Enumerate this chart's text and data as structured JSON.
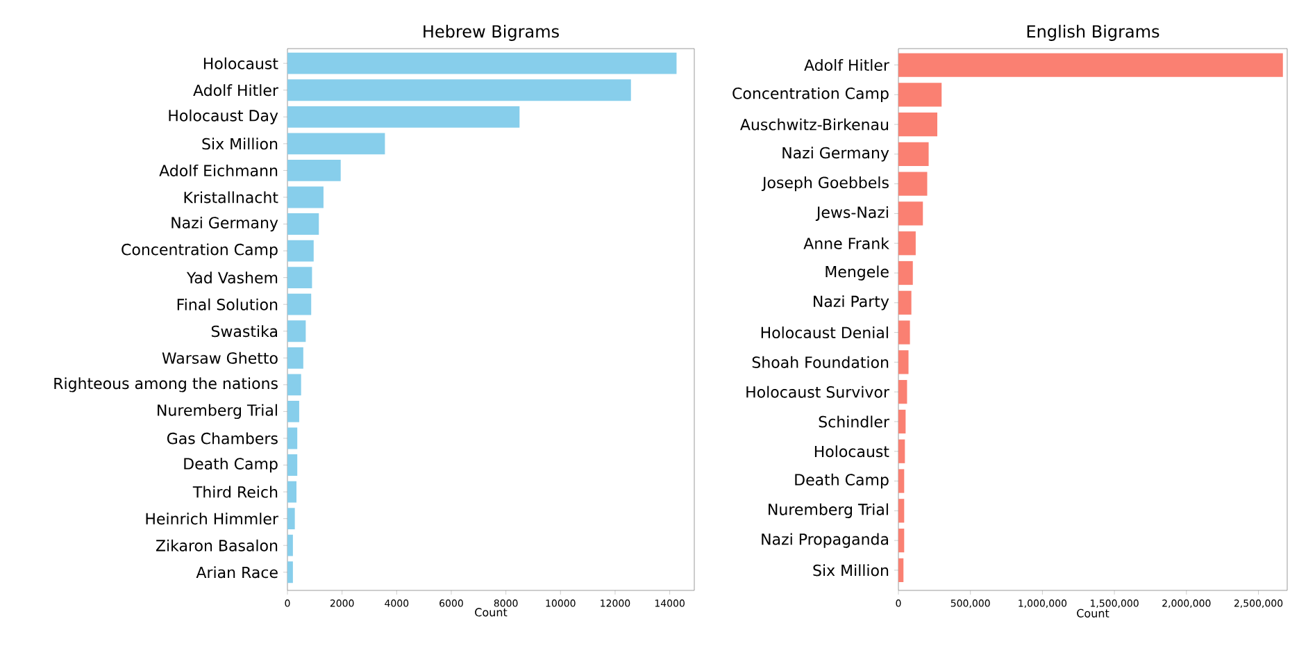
{
  "chart_data": [
    {
      "type": "bar",
      "orientation": "horizontal",
      "title": "Hebrew Bigrams",
      "xlabel": "Count",
      "color": "#87ceeb",
      "categories": [
        "Holocaust",
        "Adolf Hitler",
        "Holocaust Day",
        "Six Million",
        "Adolf Eichmann",
        "Kristallnacht",
        "Nazi Germany",
        "Concentration Camp",
        "Yad Vashem",
        "Final Solution",
        "Swastika",
        "Warsaw Ghetto",
        "Righteous among the nations",
        "Nuremberg Trial",
        "Gas Chambers",
        "Death Camp",
        "Third Reich",
        "Heinrich Himmler",
        "Zikaron Basalon",
        "Arian Race"
      ],
      "values": [
        14250,
        12580,
        8500,
        3570,
        1950,
        1320,
        1150,
        960,
        900,
        870,
        670,
        580,
        500,
        430,
        360,
        360,
        330,
        270,
        200,
        200
      ],
      "xlim": [
        0,
        14900
      ],
      "xticks": [
        0,
        2000,
        4000,
        6000,
        8000,
        10000,
        12000,
        14000
      ]
    },
    {
      "type": "bar",
      "orientation": "horizontal",
      "title": "English Bigrams",
      "xlabel": "Count",
      "color": "#fa8072",
      "categories": [
        "Adolf Hitler",
        "Concentration Camp",
        "Auschwitz-Birkenau",
        "Nazi Germany",
        "Joseph Goebbels",
        "Jews-Nazi",
        "Anne Frank",
        "Mengele",
        "Nazi Party",
        "Holocaust Denial",
        "Shoah Foundation",
        "Holocaust Survivor",
        "Schindler",
        "Holocaust",
        "Death Camp",
        "Nuremberg Trial",
        "Nazi Propaganda",
        "Six Million"
      ],
      "values": [
        2670000,
        300000,
        270000,
        210000,
        200000,
        170000,
        120000,
        100000,
        90000,
        80000,
        70000,
        60000,
        50000,
        45000,
        40000,
        40000,
        40000,
        35000
      ],
      "xlim": [
        0,
        2700000
      ],
      "xticks": [
        0,
        {
          "value": 500000,
          "label": "500,000"
        },
        {
          "value": 1000000,
          "label": "1,000,000"
        },
        {
          "value": 1500000,
          "label": "1,500,000"
        },
        {
          "value": 2000000,
          "label": "2,000,000"
        },
        {
          "value": 2500000,
          "label": "2,500,000"
        }
      ]
    }
  ]
}
